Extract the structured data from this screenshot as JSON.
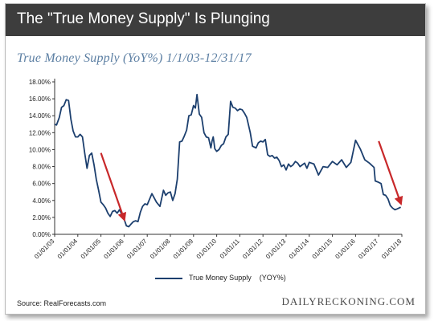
{
  "header": {
    "title": "The \"True Money Supply\" Is Plunging"
  },
  "subtitle": "True Money Supply (YoY%) 1/1/03-12/31/17",
  "footer": {
    "source": "Source: RealForecasts.com",
    "brand": "DAILYRECKONING.COM"
  },
  "colors": {
    "series": "#1c3f6e",
    "arrow": "#c8282a",
    "header_bg": "#3d3d3d"
  },
  "chart_data": {
    "type": "line",
    "title": "True Money Supply (YoY%) 1/1/03-12/31/17",
    "xlabel": "",
    "ylabel": "",
    "ylim": [
      0,
      18
    ],
    "xlim": [
      2003,
      2018
    ],
    "yticks": [
      "0.00%",
      "2.00%",
      "4.00%",
      "6.00%",
      "8.00%",
      "10.00%",
      "12.00%",
      "14.00%",
      "16.00%",
      "18.00%"
    ],
    "xticks": [
      "01/01/03",
      "01/01/04",
      "01/01/05",
      "01/01/06",
      "01/01/07",
      "01/01/08",
      "01/01/09",
      "01/01/10",
      "01/01/11",
      "01/01/12",
      "01/01/13",
      "01/01/14",
      "01/01/15",
      "01/01/16",
      "01/01/17",
      "01/01/18"
    ],
    "grid": false,
    "legend_position": "bottom",
    "series": [
      {
        "name": "True Money Supply",
        "unit": "(YOY%)",
        "x": [
          2003.0,
          2003.08,
          2003.2,
          2003.3,
          2003.4,
          2003.5,
          2003.6,
          2003.7,
          2003.8,
          2003.9,
          2004.0,
          2004.1,
          2004.2,
          2004.3,
          2004.4,
          2004.5,
          2004.6,
          2004.7,
          2004.8,
          2004.9,
          2005.0,
          2005.1,
          2005.2,
          2005.3,
          2005.4,
          2005.5,
          2005.6,
          2005.7,
          2005.8,
          2005.9,
          2006.0,
          2006.1,
          2006.2,
          2006.3,
          2006.4,
          2006.5,
          2006.6,
          2006.7,
          2006.8,
          2006.9,
          2007.0,
          2007.2,
          2007.4,
          2007.55,
          2007.7,
          2007.8,
          2007.9,
          2008.0,
          2008.1,
          2008.2,
          2008.3,
          2008.4,
          2008.5,
          2008.6,
          2008.7,
          2008.8,
          2008.9,
          2009.0,
          2009.08,
          2009.15,
          2009.25,
          2009.35,
          2009.45,
          2009.55,
          2009.65,
          2009.75,
          2009.8,
          2009.85,
          2009.92,
          2010.0,
          2010.1,
          2010.2,
          2010.3,
          2010.4,
          2010.5,
          2010.6,
          2010.7,
          2010.8,
          2010.9,
          2011.0,
          2011.1,
          2011.2,
          2011.3,
          2011.45,
          2011.55,
          2011.7,
          2011.8,
          2011.9,
          2012.0,
          2012.1,
          2012.2,
          2012.3,
          2012.4,
          2012.5,
          2012.6,
          2012.7,
          2012.8,
          2012.9,
          2013.0,
          2013.1,
          2013.2,
          2013.3,
          2013.4,
          2013.5,
          2013.6,
          2013.7,
          2013.8,
          2013.9,
          2014.0,
          2014.2,
          2014.4,
          2014.6,
          2014.8,
          2015.0,
          2015.2,
          2015.4,
          2015.6,
          2015.8,
          2016.0,
          2016.2,
          2016.4,
          2016.6,
          2016.8,
          2016.85,
          2016.95,
          2017.1,
          2017.2,
          2017.3,
          2017.4,
          2017.5,
          2017.6,
          2017.7,
          2017.8,
          2017.95
        ],
        "values": [
          13.0,
          12.9,
          13.8,
          15.0,
          15.2,
          15.9,
          15.8,
          13.6,
          12.2,
          11.5,
          11.5,
          11.8,
          11.5,
          9.6,
          7.8,
          9.3,
          9.6,
          8.2,
          6.5,
          5.2,
          3.8,
          3.5,
          3.1,
          2.5,
          2.1,
          2.7,
          2.8,
          2.5,
          2.9,
          2.4,
          1.8,
          1.0,
          0.9,
          1.2,
          1.5,
          1.6,
          1.5,
          2.6,
          3.3,
          3.6,
          3.5,
          4.8,
          3.8,
          3.3,
          5.2,
          4.6,
          4.9,
          5.0,
          4.0,
          4.8,
          6.5,
          10.9,
          11.0,
          11.6,
          12.3,
          14.0,
          14.1,
          15.2,
          14.9,
          16.5,
          14.2,
          13.8,
          12.0,
          11.5,
          11.4,
          10.2,
          11.0,
          11.5,
          10.1,
          9.8,
          10.0,
          10.5,
          10.7,
          11.5,
          11.8,
          15.7,
          15.0,
          14.9,
          14.6,
          14.8,
          14.7,
          14.3,
          13.8,
          12.0,
          10.4,
          10.2,
          10.8,
          11.0,
          10.9,
          11.2,
          9.4,
          9.2,
          9.3,
          9.0,
          9.1,
          8.7,
          8.0,
          8.2,
          7.6,
          8.3,
          8.0,
          8.2,
          8.6,
          8.4,
          8.0,
          8.2,
          8.4,
          7.8,
          8.5,
          8.3,
          7.0,
          8.0,
          7.9,
          8.6,
          8.2,
          8.8,
          7.9,
          8.5,
          11.1,
          10.1,
          8.8,
          8.4,
          7.9,
          6.3,
          6.2,
          6.0,
          4.7,
          4.6,
          4.2,
          3.4,
          3.1,
          2.9,
          3.0,
          3.2
        ]
      }
    ],
    "annotations": [
      {
        "type": "arrow",
        "from": [
          2005.0,
          9.6
        ],
        "to": [
          2006.0,
          1.8
        ]
      },
      {
        "type": "arrow",
        "from": [
          2017.0,
          11.0
        ],
        "to": [
          2017.95,
          3.7
        ]
      }
    ]
  }
}
